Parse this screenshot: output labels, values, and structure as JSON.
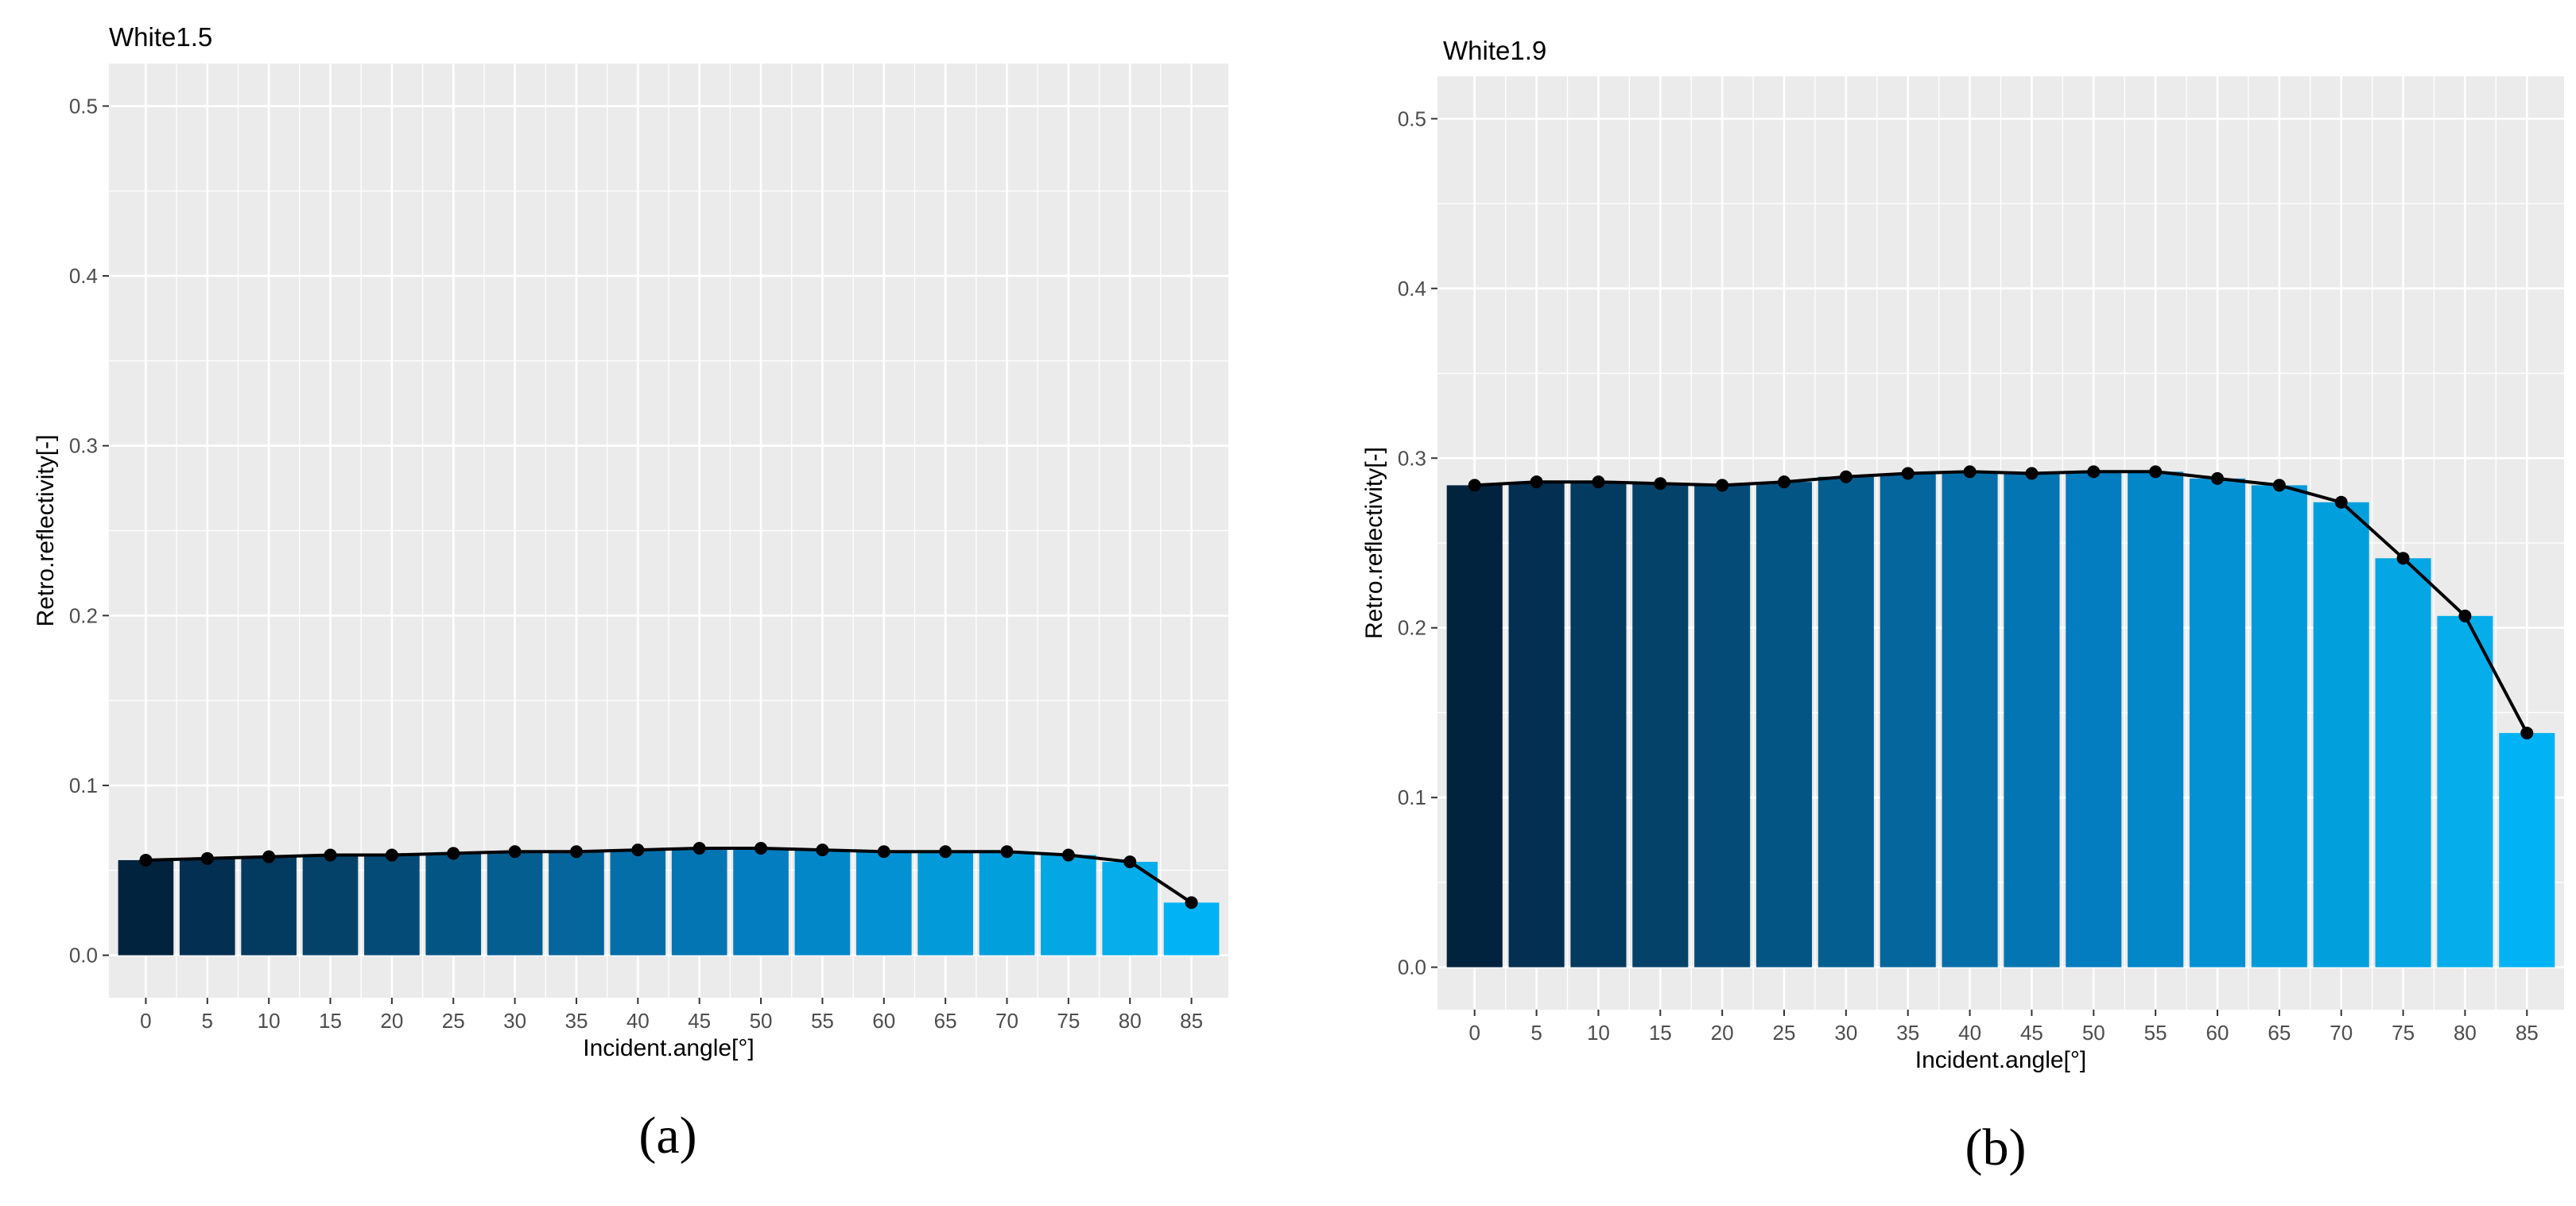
{
  "chart_data": [
    {
      "type": "bar",
      "title": "White1.5",
      "panel_label": "(a)",
      "xlabel": "Incident.angle[°]",
      "ylabel": "Retro.reflectivity[-]",
      "categories": [
        "0",
        "5",
        "10",
        "15",
        "20",
        "25",
        "30",
        "35",
        "40",
        "45",
        "50",
        "55",
        "60",
        "65",
        "70",
        "75",
        "80",
        "85"
      ],
      "values": [
        0.056,
        0.057,
        0.058,
        0.059,
        0.059,
        0.06,
        0.061,
        0.061,
        0.062,
        0.063,
        0.063,
        0.062,
        0.061,
        0.061,
        0.061,
        0.059,
        0.055,
        0.031
      ],
      "line_overlay": true,
      "ylim": [
        -0.025,
        0.525
      ],
      "yticks": [
        0.0,
        0.1,
        0.2,
        0.3,
        0.4,
        0.5
      ],
      "ytick_labels": [
        "0.0",
        "0.1",
        "0.2",
        "0.3",
        "0.4",
        "0.5"
      ],
      "bar_colors": [
        "#02233e",
        "#022f52",
        "#033a5f",
        "#04426a",
        "#044c77",
        "#035584",
        "#045e90",
        "#04669c",
        "#046ea8",
        "#0275b2",
        "#037dbf",
        "#0287c9",
        "#0391d4",
        "#039ad9",
        "#029fdd",
        "#04a6e3",
        "#05adeb",
        "#01b3f5"
      ],
      "line_color": "#000000",
      "grid": true,
      "legend": "none"
    },
    {
      "type": "bar",
      "title": "White1.9",
      "panel_label": "(b)",
      "xlabel": "Incident.angle[°]",
      "ylabel": "Retro.reflectivity[-]",
      "categories": [
        "0",
        "5",
        "10",
        "15",
        "20",
        "25",
        "30",
        "35",
        "40",
        "45",
        "50",
        "55",
        "60",
        "65",
        "70",
        "75",
        "80",
        "85"
      ],
      "values": [
        0.284,
        0.286,
        0.286,
        0.285,
        0.284,
        0.286,
        0.289,
        0.291,
        0.292,
        0.291,
        0.292,
        0.292,
        0.288,
        0.284,
        0.274,
        0.241,
        0.207,
        0.138
      ],
      "line_overlay": true,
      "ylim": [
        -0.025,
        0.525
      ],
      "yticks": [
        0.0,
        0.1,
        0.2,
        0.3,
        0.4,
        0.5
      ],
      "ytick_labels": [
        "0.0",
        "0.1",
        "0.2",
        "0.3",
        "0.4",
        "0.5"
      ],
      "bar_colors": [
        "#02233e",
        "#022f52",
        "#033a5f",
        "#04426a",
        "#044c77",
        "#035584",
        "#045e90",
        "#04669c",
        "#046ea8",
        "#0275b2",
        "#037dbf",
        "#0287c9",
        "#0391d4",
        "#039ad9",
        "#029fdd",
        "#04a6e3",
        "#05adeb",
        "#01b3f5"
      ],
      "line_color": "#000000",
      "grid": true,
      "legend": "none"
    }
  ],
  "colors": {
    "panel_bg": "#ebebeb",
    "grid_major": "#ffffff",
    "tick_text": "#4d4d4d",
    "text": "#000000"
  }
}
